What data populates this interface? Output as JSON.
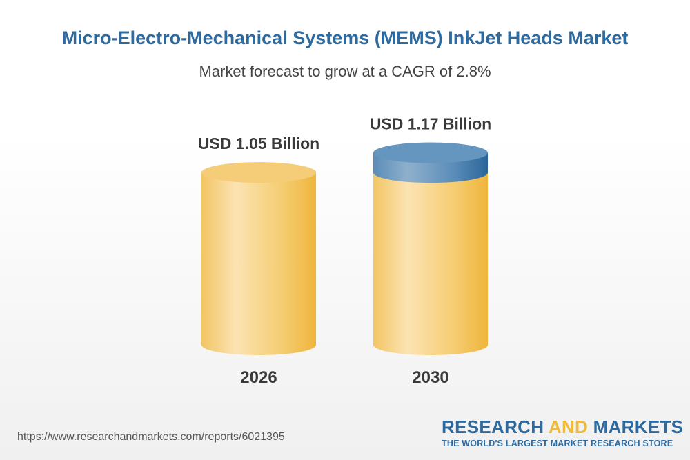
{
  "title": "Micro-Electro-Mechanical Systems (MEMS) InkJet Heads Market",
  "subtitle": "Market forecast to grow at a CAGR of 2.8%",
  "chart_data": {
    "type": "bar",
    "style": "3d-cylinder",
    "categories": [
      "2026",
      "2030"
    ],
    "values": [
      1.05,
      1.17
    ],
    "data_labels": [
      "USD 1.05 Billion",
      "USD 1.17 Billion"
    ],
    "unit": "USD Billion",
    "grid": false,
    "colors": {
      "bar": "#f2bf4f",
      "growth_segment": "#3b76a6"
    }
  },
  "footer": {
    "url": "https://www.researchandmarkets.com/reports/6021395",
    "logo_part1": "RESEARCH ",
    "logo_part2": "AND",
    "logo_part3": " MARKETS",
    "tagline": "THE WORLD'S LARGEST MARKET RESEARCH STORE"
  }
}
